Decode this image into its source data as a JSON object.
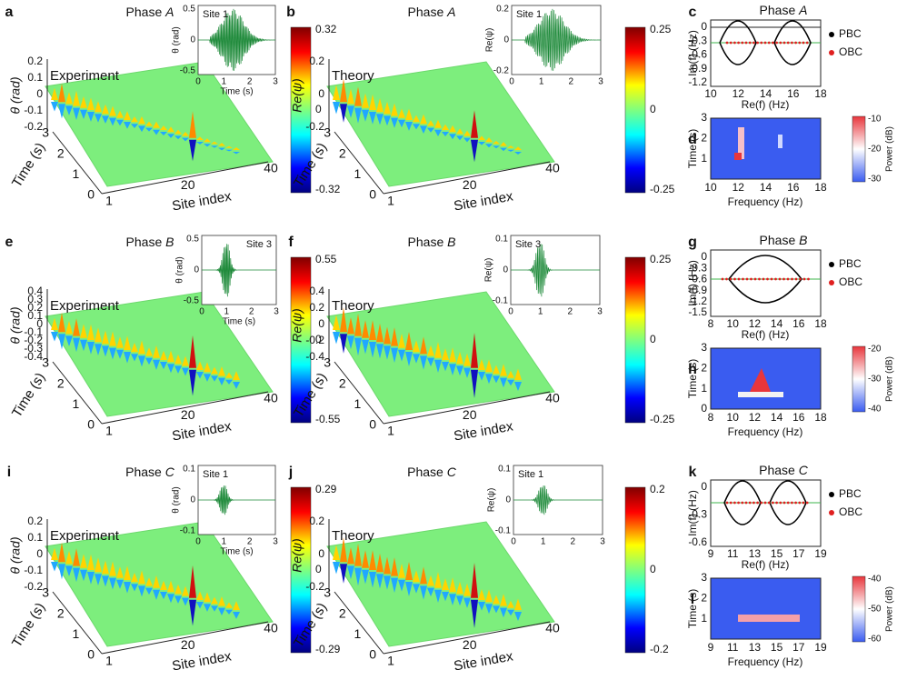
{
  "panels": [
    {
      "label": "a",
      "title": "Phase ",
      "phase": "A",
      "tag": "Experiment",
      "zlabel": "θ (rad)",
      "zticks": [
        "0.2",
        "0.1",
        "0",
        "-0.1",
        "-0.2"
      ],
      "time_label": "Time (s)",
      "time_ticks": [
        "0",
        "1",
        "2",
        "3"
      ],
      "site_label": "Site index",
      "site_ticks": [
        "1",
        "20",
        "40"
      ],
      "colorbar_ticks": [
        "0.32",
        "0",
        "-0.32"
      ],
      "inset": {
        "label": "Site 1",
        "ylabel": "θ (rad)",
        "yticks": [
          "0.5",
          "0",
          "-0.5"
        ],
        "xticks": [
          "0",
          "1",
          "2",
          "3"
        ],
        "xlabel": "Time (s)"
      }
    },
    {
      "label": "b",
      "title": "Phase ",
      "phase": "A",
      "tag": "Theory",
      "zlabel": "Re(ψ)",
      "zticks": [
        "0.2",
        "0",
        "-0.2"
      ],
      "time_label": "Time (s)",
      "time_ticks": [
        "0",
        "1",
        "2",
        "3"
      ],
      "site_label": "Site index",
      "site_ticks": [
        "1",
        "20",
        "40"
      ],
      "colorbar_ticks": [
        "0.25",
        "0",
        "-0.25"
      ],
      "inset": {
        "label": "Site 1",
        "ylabel": "Re(ψ)",
        "yticks": [
          "0.2",
          "0",
          "-0.2"
        ],
        "xticks": [
          "0",
          "1",
          "2",
          "3"
        ]
      }
    },
    {
      "label": "e",
      "title": "Phase ",
      "phase": "B",
      "tag": "Experiment",
      "zlabel": "θ (rad)",
      "zticks": [
        "0.4",
        "0.3",
        "0.2",
        "0.1",
        "0",
        "-0.1",
        "-0.2",
        "-0.3",
        "-0.4"
      ],
      "time_label": "Time (s)",
      "time_ticks": [
        "0",
        "1",
        "2",
        "3"
      ],
      "site_label": "Site index",
      "site_ticks": [
        "1",
        "20",
        "40"
      ],
      "colorbar_ticks": [
        "0.55",
        "0",
        "-0.55"
      ],
      "inset": {
        "label": "Site 3",
        "ylabel": "θ (rad)",
        "yticks": [
          "0.5",
          "0",
          "-0.5"
        ],
        "xticks": [
          "0",
          "1",
          "2",
          "3"
        ],
        "xlabel": "Time (s)"
      }
    },
    {
      "label": "f",
      "title": "Phase ",
      "phase": "B",
      "tag": "Theory",
      "zlabel": "Re(ψ)",
      "zticks": [
        "0.4",
        "0.2",
        "0",
        "-0.2",
        "-0.4"
      ],
      "time_label": "Time (s)",
      "time_ticks": [
        "0",
        "1",
        "2",
        "3"
      ],
      "site_label": "Site index",
      "site_ticks": [
        "1",
        "20",
        "40"
      ],
      "colorbar_ticks": [
        "0.25",
        "0",
        "-0.25"
      ],
      "inset": {
        "label": "Site 3",
        "ylabel": "Re(ψ)",
        "yticks": [
          "0.1",
          "0",
          "-0.1"
        ],
        "xticks": [
          "0",
          "1",
          "2",
          "3"
        ]
      }
    },
    {
      "label": "i",
      "title": "Phase ",
      "phase": "C",
      "tag": "Experiment",
      "zlabel": "θ (rad)",
      "zticks": [
        "0.2",
        "0.1",
        "0",
        "-0.1",
        "-0.2"
      ],
      "time_label": "Time (s)",
      "time_ticks": [
        "0",
        "1",
        "2",
        "3"
      ],
      "site_label": "Site index",
      "site_ticks": [
        "1",
        "20",
        "40"
      ],
      "colorbar_ticks": [
        "0.29",
        "0",
        "-0.29"
      ],
      "inset": {
        "label": "Site 1",
        "ylabel": "θ (rad)",
        "yticks": [
          "0.1",
          "0",
          "-0.1"
        ],
        "xticks": [
          "0",
          "1",
          "2",
          "3"
        ],
        "xlabel": "Time (s)"
      }
    },
    {
      "label": "j",
      "title": "Phase ",
      "phase": "C",
      "tag": "Theory",
      "zlabel": "Re(ψ)",
      "zticks": [
        "0.2",
        "0",
        "-0.2"
      ],
      "time_label": "Time (s)",
      "time_ticks": [
        "0",
        "1",
        "2",
        "3"
      ],
      "site_label": "Site index",
      "site_ticks": [
        "1",
        "20",
        "40"
      ],
      "colorbar_ticks": [
        "0.2",
        "0",
        "-0.2"
      ],
      "inset": {
        "label": "Site 1",
        "ylabel": "Re(ψ)",
        "yticks": [
          "0.1",
          "0",
          "-0.1"
        ],
        "xticks": [
          "0",
          "1",
          "2",
          "3"
        ]
      }
    }
  ],
  "spectra": [
    {
      "label": "c",
      "title": "Phase ",
      "phase": "A",
      "ylabel": "Im(f) (Hz)",
      "xlabel": "Re(f) (Hz)",
      "yticks": [
        "0",
        "-0.3",
        "-0.6",
        "-0.9",
        "-1.2"
      ],
      "xticks": [
        "10",
        "12",
        "14",
        "16",
        "18"
      ],
      "legend": [
        "PBC",
        "OBC"
      ]
    },
    {
      "label": "g",
      "title": "Phase ",
      "phase": "B",
      "ylabel": "Im(f) (Hz)",
      "xlabel": "Re(f) (Hz)",
      "yticks": [
        "0",
        "-0.3",
        "-0.6",
        "-0.9",
        "-1.2",
        "-1.5"
      ],
      "xticks": [
        "8",
        "10",
        "12",
        "14",
        "16",
        "18"
      ],
      "legend": [
        "PBC",
        "OBC"
      ]
    },
    {
      "label": "k",
      "title": "Phase ",
      "phase": "C",
      "ylabel": "Im(f) (Hz)",
      "xlabel": "Re(f) (Hz)",
      "yticks": [
        "0",
        "-0.3",
        "-0.6"
      ],
      "xticks": [
        "9",
        "11",
        "13",
        "15",
        "17",
        "19"
      ],
      "legend": [
        "PBC",
        "OBC"
      ]
    }
  ],
  "spectrograms": [
    {
      "label": "d",
      "ylabel": "Time (s)",
      "xlabel": "Frequency (Hz)",
      "yticks": [
        "3",
        "2",
        "1"
      ],
      "xticks": [
        "10",
        "12",
        "14",
        "16",
        "18"
      ],
      "colorbar_label": "Power (dB)",
      "colorbar_ticks": [
        "-10",
        "-20",
        "-30"
      ]
    },
    {
      "label": "h",
      "ylabel": "Time (s)",
      "xlabel": "Frequency (Hz)",
      "yticks": [
        "3",
        "2",
        "1",
        "0"
      ],
      "xticks": [
        "8",
        "10",
        "12",
        "14",
        "16",
        "18"
      ],
      "colorbar_label": "Power (dB)",
      "colorbar_ticks": [
        "-20",
        "-30",
        "-40"
      ]
    },
    {
      "label": "l",
      "ylabel": "Time (s)",
      "xlabel": "Frequency (Hz)",
      "yticks": [
        "3",
        "2",
        "1"
      ],
      "xticks": [
        "9",
        "11",
        "13",
        "15",
        "17",
        "19"
      ],
      "colorbar_label": "Power (dB)",
      "colorbar_ticks": [
        "-40",
        "-50",
        "-60"
      ]
    }
  ]
}
